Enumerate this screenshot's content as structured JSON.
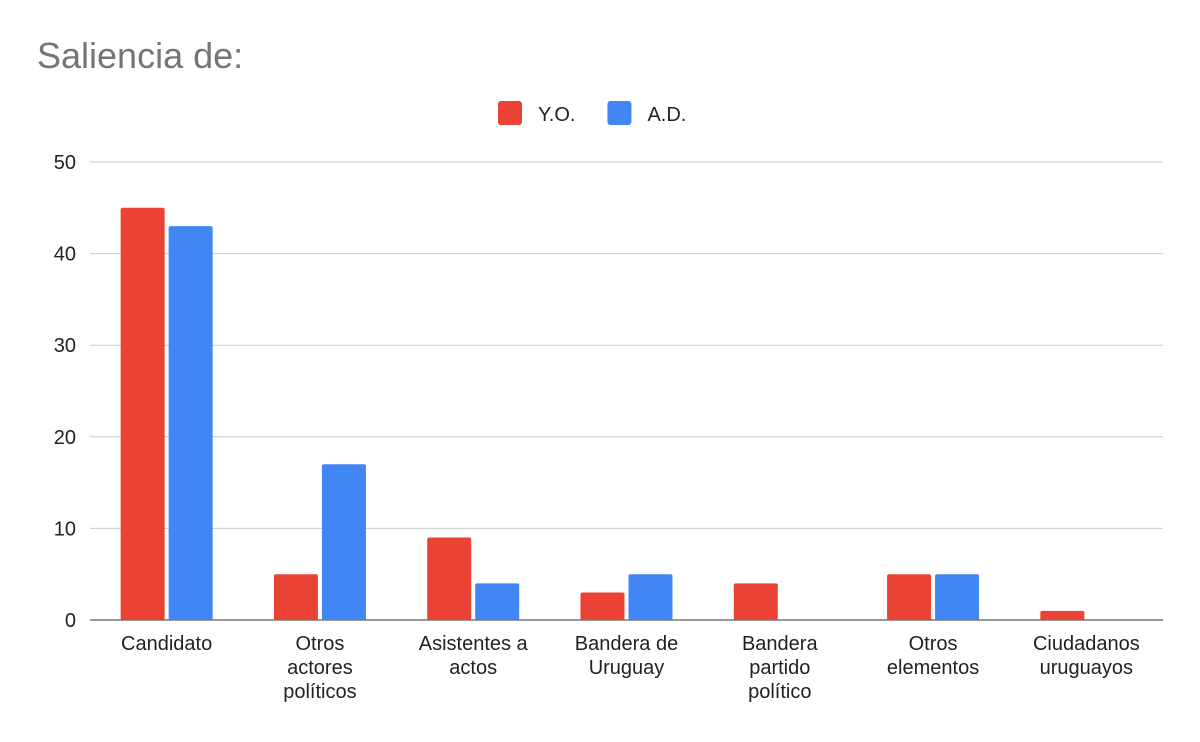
{
  "chart_data": {
    "type": "bar",
    "title": "Saliencia de:",
    "categories": [
      "Candidato",
      "Otros\nactores\npolíticos",
      "Asistentes a\nactos",
      "Bandera de\nUruguay",
      "Bandera\npartido\npolítico",
      "Otros\nelementos",
      "Ciudadanos\nuruguayos"
    ],
    "series": [
      {
        "name": "Y.O.",
        "color": "#ea4335",
        "values": [
          45,
          5,
          9,
          3,
          4,
          5,
          1
        ]
      },
      {
        "name": "A.D.",
        "color": "#4285f4",
        "values": [
          43,
          17,
          4,
          5,
          0,
          5,
          0
        ]
      }
    ],
    "ylim": [
      0,
      50
    ],
    "yticks": [
      0,
      10,
      20,
      30,
      40,
      50
    ],
    "grid": true,
    "legend": "top"
  }
}
